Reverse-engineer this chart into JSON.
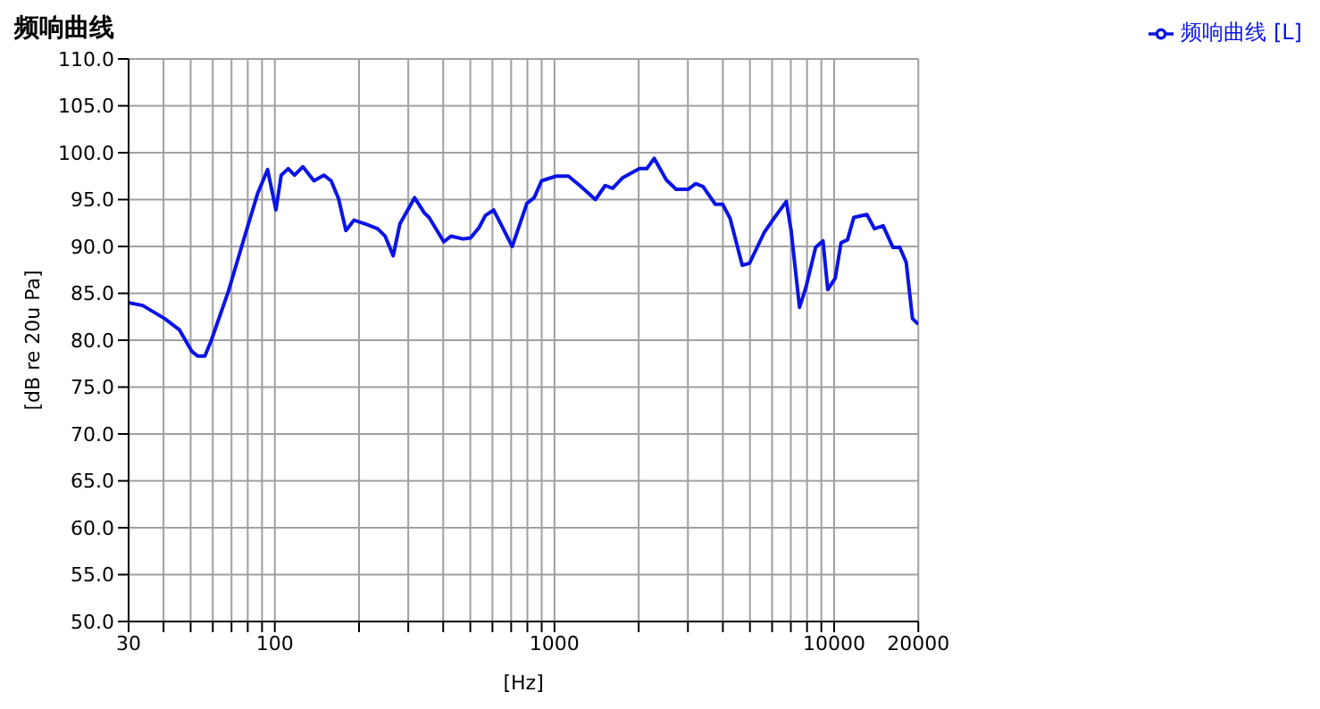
{
  "chart_data": {
    "type": "line",
    "title": "频响曲线",
    "xlabel": "[Hz]",
    "ylabel": "[dB re 20u Pa]",
    "log": "x",
    "grid": true,
    "legend": "top right",
    "marker": "none",
    "line_style": "solid",
    "xlim": [
      30,
      20000
    ],
    "xticks": [
      30,
      {
        "value": 40,
        "label": null
      },
      {
        "value": 50,
        "label": null
      },
      {
        "value": 60,
        "label": null
      },
      {
        "value": 70,
        "label": null
      },
      {
        "value": 80,
        "label": null
      },
      {
        "value": 90,
        "label": null
      },
      100,
      {
        "value": 200,
        "label": null
      },
      {
        "value": 300,
        "label": null
      },
      {
        "value": 400,
        "label": null
      },
      {
        "value": 500,
        "label": null
      },
      {
        "value": 600,
        "label": null
      },
      {
        "value": 700,
        "label": null
      },
      {
        "value": 800,
        "label": null
      },
      {
        "value": 900,
        "label": null
      },
      1000,
      {
        "value": 2000,
        "label": null
      },
      {
        "value": 3000,
        "label": null
      },
      {
        "value": 4000,
        "label": null
      },
      {
        "value": 5000,
        "label": null
      },
      {
        "value": 6000,
        "label": null
      },
      {
        "value": 7000,
        "label": null
      },
      {
        "value": 8000,
        "label": null
      },
      {
        "value": 9000,
        "label": null
      },
      10000,
      20000
    ],
    "ylim": [
      50,
      110
    ],
    "yticks": [
      {
        "value": 50,
        "label": "50.0"
      },
      {
        "value": 55,
        "label": "55.0"
      },
      {
        "value": 60,
        "label": "60.0"
      },
      {
        "value": 65,
        "label": "65.0"
      },
      {
        "value": 70,
        "label": "70.0"
      },
      {
        "value": 75,
        "label": "75.0"
      },
      {
        "value": 80,
        "label": "80.0"
      },
      {
        "value": 85,
        "label": "85.0"
      },
      {
        "value": 90,
        "label": "90.0"
      },
      {
        "value": 95,
        "label": "95.0"
      },
      {
        "value": 100,
        "label": "100.0"
      },
      {
        "value": 105,
        "label": "105.0"
      },
      {
        "value": 110,
        "label": "110.0"
      }
    ],
    "series": [
      {
        "name": "频响曲线 [L]",
        "color": "#0a14e6",
        "x": [
          30,
          33.7,
          40.4,
          45.6,
          50.5,
          53.1,
          56.2,
          59.3,
          68.2,
          78.6,
          86.9,
          94.2,
          100.9,
          105.4,
          111.6,
          117.6,
          126,
          138,
          149.7,
          159,
          169,
          179.5,
          192,
          211,
          233,
          248,
          265,
          280,
          316,
          342,
          356,
          402,
          427,
          472,
          501,
          537,
          566,
          606,
          706,
          797,
          846,
          899,
          1014,
          1122,
          1242,
          1401,
          1518,
          1614,
          1749,
          2014,
          2139,
          2272,
          2512,
          2723,
          3011,
          3198,
          3396,
          3759,
          3992,
          4245,
          4692,
          4981,
          5625,
          6093,
          6745,
          7017,
          7519,
          7921,
          8586,
          9122,
          9487,
          10086,
          10585,
          11162,
          11755,
          13096,
          13930,
          14970,
          16230,
          17160,
          18100,
          19060,
          20000
        ],
        "values": [
          84.0,
          83.7,
          82.3,
          81.1,
          78.8,
          78.3,
          78.3,
          80.0,
          85.2,
          91.4,
          95.7,
          98.2,
          93.9,
          97.6,
          98.3,
          97.6,
          98.5,
          97.0,
          97.6,
          97.0,
          95.1,
          91.7,
          92.8,
          92.4,
          91.9,
          91.1,
          89.0,
          92.4,
          95.2,
          93.6,
          93.1,
          90.5,
          91.1,
          90.8,
          90.9,
          92.0,
          93.3,
          93.9,
          90.0,
          94.6,
          95.2,
          97.0,
          97.5,
          97.5,
          96.4,
          95.0,
          96.5,
          96.2,
          97.3,
          98.3,
          98.3,
          99.4,
          97.1,
          96.1,
          96.1,
          96.7,
          96.4,
          94.5,
          94.5,
          93.0,
          88.0,
          88.2,
          91.5,
          93.0,
          94.8,
          91.7,
          83.5,
          85.6,
          89.9,
          90.6,
          85.4,
          86.6,
          90.4,
          90.7,
          93.1,
          93.4,
          91.9,
          92.2,
          89.9,
          89.9,
          88.3,
          82.3,
          81.7
        ]
      }
    ]
  }
}
